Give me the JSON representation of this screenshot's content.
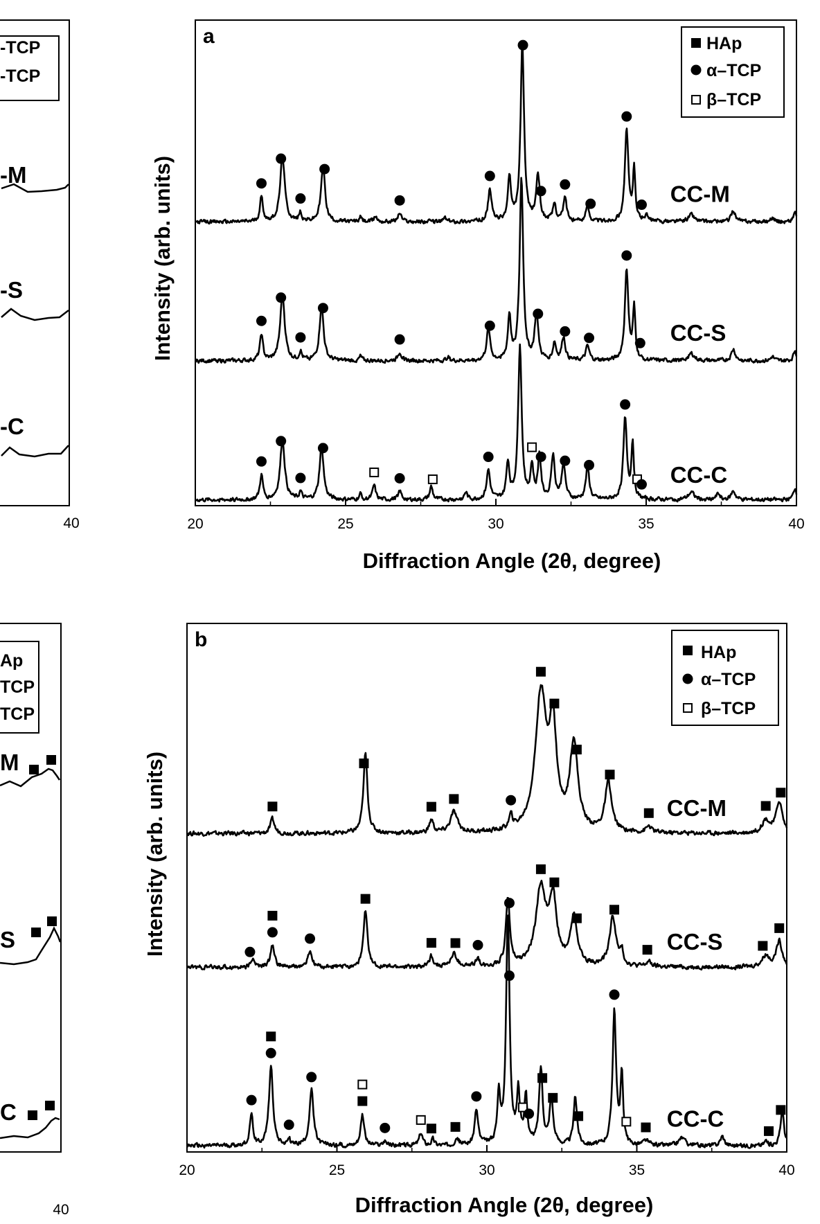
{
  "marker_names": {
    "hap": "square",
    "alpha": "circle",
    "beta": "open-square"
  },
  "colors": {
    "ink": "#000000",
    "background": "#ffffff"
  },
  "chart_data": [
    {
      "type": "line",
      "panel": "a",
      "xlabel": "Diffraction Angle (2θ, degree)",
      "ylabel": "Intensity (arb. units)",
      "xlim": [
        20,
        40
      ],
      "ylim": [
        0,
        3.3
      ],
      "xticks": [
        "20",
        "25",
        "30",
        "35",
        "40"
      ],
      "legend": {
        "placement": "top-right",
        "entries": [
          {
            "label": "HAp",
            "marker": "hap"
          },
          {
            "label": "α–TCP",
            "marker": "alpha"
          },
          {
            "label": "β–TCP",
            "marker": "beta"
          }
        ]
      },
      "series": [
        {
          "name": "CC-M",
          "offset": 1.9,
          "baseline": 0.03,
          "noise": 0.012,
          "peaks": [
            [
              22.2,
              0.17,
              0.06
            ],
            [
              22.9,
              0.45,
              0.09
            ],
            [
              23.5,
              0.06,
              0.05
            ],
            [
              24.25,
              0.38,
              0.08
            ],
            [
              25.5,
              0.03,
              0.05
            ],
            [
              26.0,
              0.04,
              0.05
            ],
            [
              26.8,
              0.06,
              0.07
            ],
            [
              28.3,
              0.03,
              0.05
            ],
            [
              29.8,
              0.22,
              0.07
            ],
            [
              30.45,
              0.3,
              0.06
            ],
            [
              30.88,
              1.2,
              0.07
            ],
            [
              31.4,
              0.32,
              0.07
            ],
            [
              31.95,
              0.12,
              0.06
            ],
            [
              32.3,
              0.16,
              0.07
            ],
            [
              33.05,
              0.1,
              0.07
            ],
            [
              34.35,
              0.62,
              0.07
            ],
            [
              34.6,
              0.35,
              0.05
            ],
            [
              35.0,
              0.04,
              0.06
            ],
            [
              36.5,
              0.05,
              0.12
            ],
            [
              37.9,
              0.08,
              0.08
            ],
            [
              39.2,
              0.03,
              0.06
            ],
            [
              39.95,
              0.07,
              0.06
            ]
          ],
          "markers": [
            [
              22.2,
              "alpha"
            ],
            [
              22.85,
              "alpha"
            ],
            [
              23.5,
              "alpha"
            ],
            [
              24.3,
              "alpha"
            ],
            [
              26.8,
              "alpha"
            ],
            [
              29.8,
              "alpha"
            ],
            [
              30.9,
              "alpha"
            ],
            [
              31.5,
              "alpha"
            ],
            [
              32.3,
              "alpha"
            ],
            [
              33.15,
              "alpha"
            ],
            [
              34.35,
              "alpha"
            ],
            [
              34.85,
              "alpha"
            ]
          ]
        },
        {
          "name": "CC-S",
          "offset": 0.95,
          "baseline": 0.03,
          "noise": 0.012,
          "peaks": [
            [
              22.2,
              0.18,
              0.06
            ],
            [
              22.9,
              0.45,
              0.09
            ],
            [
              23.5,
              0.06,
              0.05
            ],
            [
              24.2,
              0.38,
              0.08
            ],
            [
              25.5,
              0.03,
              0.05
            ],
            [
              26.8,
              0.06,
              0.07
            ],
            [
              28.4,
              0.03,
              0.05
            ],
            [
              29.75,
              0.22,
              0.07
            ],
            [
              30.45,
              0.3,
              0.06
            ],
            [
              30.85,
              1.25,
              0.07
            ],
            [
              31.35,
              0.32,
              0.07
            ],
            [
              31.95,
              0.12,
              0.06
            ],
            [
              32.25,
              0.16,
              0.07
            ],
            [
              33.05,
              0.1,
              0.07
            ],
            [
              34.35,
              0.62,
              0.07
            ],
            [
              34.6,
              0.35,
              0.05
            ],
            [
              36.5,
              0.05,
              0.12
            ],
            [
              37.9,
              0.08,
              0.08
            ],
            [
              39.2,
              0.03,
              0.06
            ],
            [
              39.95,
              0.07,
              0.06
            ]
          ],
          "markers": [
            [
              22.2,
              "alpha"
            ],
            [
              22.85,
              "alpha"
            ],
            [
              23.5,
              "alpha"
            ],
            [
              24.25,
              "alpha"
            ],
            [
              26.8,
              "alpha"
            ],
            [
              29.8,
              "alpha"
            ],
            [
              31.4,
              "alpha"
            ],
            [
              32.3,
              "alpha"
            ],
            [
              33.1,
              "alpha"
            ],
            [
              34.35,
              "alpha"
            ],
            [
              34.8,
              "alpha"
            ]
          ]
        },
        {
          "name": "CC-C",
          "offset": 0.0,
          "baseline": 0.03,
          "noise": 0.012,
          "peaks": [
            [
              22.2,
              0.17,
              0.06
            ],
            [
              22.9,
              0.41,
              0.09
            ],
            [
              23.5,
              0.05,
              0.05
            ],
            [
              24.2,
              0.37,
              0.08
            ],
            [
              25.5,
              0.04,
              0.05
            ],
            [
              25.95,
              0.1,
              0.06
            ],
            [
              26.8,
              0.06,
              0.07
            ],
            [
              27.85,
              0.09,
              0.06
            ],
            [
              29.0,
              0.05,
              0.06
            ],
            [
              29.75,
              0.2,
              0.07
            ],
            [
              30.4,
              0.25,
              0.06
            ],
            [
              30.8,
              1.06,
              0.07
            ],
            [
              31.2,
              0.22,
              0.06
            ],
            [
              31.45,
              0.3,
              0.06
            ],
            [
              31.9,
              0.3,
              0.07
            ],
            [
              32.25,
              0.25,
              0.07
            ],
            [
              33.05,
              0.22,
              0.07
            ],
            [
              34.3,
              0.55,
              0.07
            ],
            [
              34.55,
              0.38,
              0.05
            ],
            [
              36.5,
              0.05,
              0.12
            ],
            [
              37.4,
              0.04,
              0.08
            ],
            [
              37.9,
              0.06,
              0.08
            ],
            [
              39.95,
              0.08,
              0.06
            ]
          ],
          "markers": [
            [
              22.2,
              "alpha"
            ],
            [
              22.85,
              "alpha"
            ],
            [
              23.5,
              "alpha"
            ],
            [
              24.25,
              "alpha"
            ],
            [
              25.95,
              "beta"
            ],
            [
              26.8,
              "alpha"
            ],
            [
              27.9,
              "beta"
            ],
            [
              29.75,
              "alpha"
            ],
            [
              31.2,
              "beta"
            ],
            [
              31.5,
              "alpha"
            ],
            [
              32.3,
              "alpha"
            ],
            [
              33.1,
              "alpha"
            ],
            [
              34.3,
              "alpha"
            ],
            [
              34.7,
              "beta"
            ],
            [
              34.85,
              "alpha"
            ]
          ]
        }
      ]
    },
    {
      "type": "line",
      "panel": "b",
      "xlabel": "Diffraction Angle (2θ, degree)",
      "ylabel": "Intensity (arb. units)",
      "xlim": [
        20,
        40
      ],
      "ylim": [
        0,
        3.3
      ],
      "xticks": [
        "20",
        "25",
        "30",
        "35",
        "40"
      ],
      "legend": {
        "placement": "top-right",
        "entries": [
          {
            "label": "HAp",
            "marker": "hap"
          },
          {
            "label": "α–TCP",
            "marker": "alpha"
          },
          {
            "label": "β–TCP",
            "marker": "beta"
          }
        ]
      },
      "series": [
        {
          "name": "CC-M",
          "offset": 1.97,
          "baseline": 0.02,
          "noise": 0.012,
          "peaks": [
            [
              22.85,
              0.09,
              0.08
            ],
            [
              25.95,
              0.5,
              0.08
            ],
            [
              28.15,
              0.08,
              0.08
            ],
            [
              28.9,
              0.13,
              0.14
            ],
            [
              30.8,
              0.08,
              0.07
            ],
            [
              31.8,
              0.85,
              0.22
            ],
            [
              32.2,
              0.6,
              0.15
            ],
            [
              32.9,
              0.55,
              0.16
            ],
            [
              34.05,
              0.31,
              0.13
            ],
            [
              35.4,
              0.04,
              0.1
            ],
            [
              39.3,
              0.08,
              0.15
            ],
            [
              39.75,
              0.2,
              0.12
            ]
          ],
          "markers": [
            [
              22.85,
              "hap"
            ],
            [
              25.9,
              "hap"
            ],
            [
              28.15,
              "hap"
            ],
            [
              28.9,
              "hap"
            ],
            [
              30.8,
              "alpha"
            ],
            [
              31.8,
              "hap"
            ],
            [
              32.25,
              "hap"
            ],
            [
              33.0,
              "hap"
            ],
            [
              34.1,
              "hap"
            ],
            [
              35.4,
              "hap"
            ],
            [
              39.3,
              "hap"
            ],
            [
              39.8,
              "hap"
            ]
          ]
        },
        {
          "name": "CC-S",
          "offset": 1.13,
          "baseline": 0.02,
          "noise": 0.012,
          "peaks": [
            [
              22.2,
              0.06,
              0.06
            ],
            [
              22.85,
              0.14,
              0.08
            ],
            [
              24.1,
              0.1,
              0.08
            ],
            [
              25.95,
              0.35,
              0.08
            ],
            [
              28.15,
              0.07,
              0.08
            ],
            [
              28.9,
              0.08,
              0.12
            ],
            [
              29.7,
              0.05,
              0.07
            ],
            [
              30.7,
              0.42,
              0.08
            ],
            [
              31.8,
              0.48,
              0.2
            ],
            [
              32.2,
              0.4,
              0.15
            ],
            [
              32.9,
              0.3,
              0.14
            ],
            [
              34.2,
              0.31,
              0.13
            ],
            [
              34.5,
              0.08,
              0.06
            ],
            [
              35.4,
              0.03,
              0.1
            ],
            [
              39.3,
              0.07,
              0.15
            ],
            [
              39.75,
              0.16,
              0.12
            ]
          ],
          "markers": [
            [
              22.1,
              "alpha"
            ],
            [
              22.85,
              "alpha"
            ],
            [
              22.85,
              "hap"
            ],
            [
              24.1,
              "alpha"
            ],
            [
              25.95,
              "hap"
            ],
            [
              28.15,
              "hap"
            ],
            [
              28.95,
              "hap"
            ],
            [
              29.7,
              "alpha"
            ],
            [
              30.75,
              "alpha"
            ],
            [
              31.8,
              "hap"
            ],
            [
              32.25,
              "hap"
            ],
            [
              33.0,
              "hap"
            ],
            [
              34.25,
              "hap"
            ],
            [
              35.35,
              "hap"
            ],
            [
              39.2,
              "hap"
            ],
            [
              39.75,
              "hap"
            ]
          ]
        },
        {
          "name": "CC-C",
          "offset": 0.0,
          "baseline": 0.03,
          "noise": 0.012,
          "peaks": [
            [
              22.15,
              0.2,
              0.06
            ],
            [
              22.8,
              0.5,
              0.08
            ],
            [
              23.4,
              0.04,
              0.05
            ],
            [
              24.15,
              0.35,
              0.08
            ],
            [
              25.85,
              0.2,
              0.07
            ],
            [
              26.6,
              0.03,
              0.06
            ],
            [
              27.8,
              0.08,
              0.07
            ],
            [
              28.2,
              0.04,
              0.06
            ],
            [
              29.0,
              0.05,
              0.07
            ],
            [
              29.65,
              0.22,
              0.07
            ],
            [
              30.4,
              0.3,
              0.06
            ],
            [
              30.7,
              1.45,
              0.07
            ],
            [
              31.05,
              0.32,
              0.06
            ],
            [
              31.3,
              0.3,
              0.06
            ],
            [
              31.8,
              0.48,
              0.07
            ],
            [
              32.15,
              0.3,
              0.07
            ],
            [
              32.95,
              0.3,
              0.07
            ],
            [
              34.25,
              0.85,
              0.07
            ],
            [
              34.5,
              0.45,
              0.05
            ],
            [
              35.3,
              0.03,
              0.1
            ],
            [
              36.5,
              0.05,
              0.12
            ],
            [
              37.85,
              0.06,
              0.08
            ],
            [
              39.3,
              0.03,
              0.06
            ],
            [
              39.85,
              0.22,
              0.07
            ]
          ],
          "markers": [
            [
              22.15,
              "alpha"
            ],
            [
              22.8,
              "alpha"
            ],
            [
              22.8,
              "hap"
            ],
            [
              23.4,
              "alpha"
            ],
            [
              24.15,
              "alpha"
            ],
            [
              25.85,
              "hap"
            ],
            [
              25.85,
              "beta"
            ],
            [
              26.6,
              "alpha"
            ],
            [
              27.8,
              "beta"
            ],
            [
              28.15,
              "hap"
            ],
            [
              28.95,
              "hap"
            ],
            [
              29.65,
              "alpha"
            ],
            [
              30.75,
              "alpha"
            ],
            [
              31.2,
              "beta"
            ],
            [
              31.4,
              "alpha"
            ],
            [
              31.85,
              "hap"
            ],
            [
              32.2,
              "hap"
            ],
            [
              33.05,
              "hap"
            ],
            [
              34.25,
              "alpha"
            ],
            [
              34.65,
              "beta"
            ],
            [
              35.3,
              "hap"
            ],
            [
              39.4,
              "hap"
            ],
            [
              39.8,
              "hap"
            ]
          ]
        }
      ]
    }
  ],
  "partial_panels": {
    "a_left": {
      "xtick_label": "40",
      "legend_fragments": [
        "-TCP",
        "-TCP"
      ],
      "trace_fragments": [
        "-M",
        "-S",
        "-C"
      ]
    },
    "b_left": {
      "xtick_label": "40",
      "legend_fragments": [
        "Ap",
        "TCP",
        "TCP"
      ],
      "trace_fragments": [
        "M",
        "S",
        "C"
      ]
    }
  }
}
